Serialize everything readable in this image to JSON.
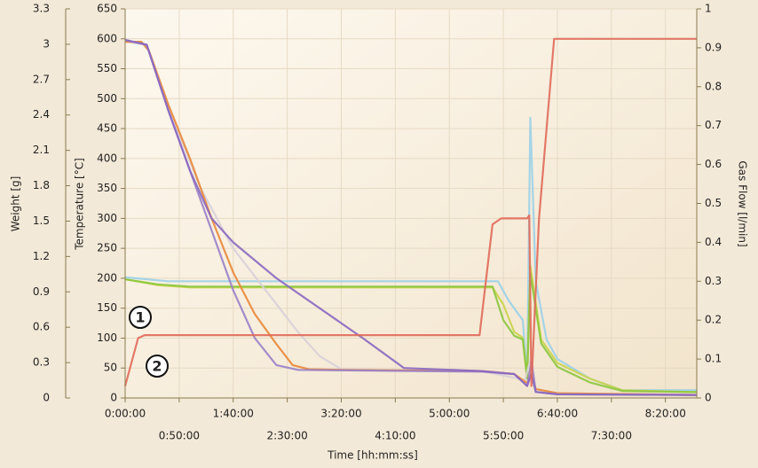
{
  "chart_data": {
    "type": "line",
    "xlabel": "Time [hh:mm:ss]",
    "ylabel": "Temperature [°C]",
    "y2label": "Gas Flow [l/min]",
    "y3label": "Weight [g]",
    "xlim": [
      0,
      529
    ],
    "xticks": [
      {
        "value": 0,
        "label": "0:00:00"
      },
      {
        "value": 50,
        "label": "0:50:00"
      },
      {
        "value": 100,
        "label": "1:40:00"
      },
      {
        "value": 150,
        "label": "2:30:00"
      },
      {
        "value": 200,
        "label": "3:20:00"
      },
      {
        "value": 250,
        "label": "4:10:00"
      },
      {
        "value": 300,
        "label": "5:00:00"
      },
      {
        "value": 350,
        "label": "5:50:00"
      },
      {
        "value": 400,
        "label": "6:40:00"
      },
      {
        "value": 450,
        "label": "7:30:00"
      },
      {
        "value": 500,
        "label": "8:20:00"
      }
    ],
    "ylim": [
      0,
      650
    ],
    "yticks": [
      0,
      50,
      100,
      150,
      200,
      250,
      300,
      350,
      400,
      450,
      500,
      550,
      600,
      650
    ],
    "y2lim": [
      0,
      1
    ],
    "y2ticks": [
      0,
      0.1,
      0.2,
      0.3,
      0.4,
      0.5,
      0.6,
      0.7,
      0.8,
      0.9,
      1
    ],
    "y3lim": [
      0,
      3.3
    ],
    "y3ticks": [
      0,
      0.3,
      0.6,
      0.9,
      1.2,
      1.5,
      1.8,
      2.1,
      2.4,
      2.7,
      3,
      3.3
    ],
    "grid": true,
    "annotations": [
      "1",
      "2"
    ],
    "series": [
      {
        "color": "#9bd0e8",
        "axis": "y2",
        "x": [
          0,
          40,
          100,
          200,
          345,
          355,
          368,
          372,
          375,
          380,
          390,
          400,
          430,
          460,
          529
        ],
        "values": [
          0.31,
          0.3,
          0.3,
          0.3,
          0.3,
          0.25,
          0.2,
          0.05,
          0.72,
          0.3,
          0.15,
          0.1,
          0.05,
          0.02,
          0.02
        ]
      },
      {
        "color": "#c8d44a",
        "axis": "y2",
        "x": [
          0,
          30,
          60,
          200,
          340,
          350,
          360,
          368,
          372,
          375,
          385,
          400,
          430,
          460,
          529
        ],
        "values": [
          0.305,
          0.29,
          0.284,
          0.284,
          0.284,
          0.24,
          0.17,
          0.155,
          0.05,
          0.34,
          0.15,
          0.09,
          0.05,
          0.02,
          0.015
        ]
      },
      {
        "color": "#8cc63f",
        "axis": "y2",
        "x": [
          0,
          30,
          60,
          200,
          340,
          350,
          360,
          368,
          372,
          375,
          385,
          400,
          430,
          460,
          529
        ],
        "values": [
          0.305,
          0.292,
          0.286,
          0.286,
          0.286,
          0.2,
          0.16,
          0.15,
          0.05,
          0.32,
          0.14,
          0.08,
          0.04,
          0.018,
          0.015
        ]
      },
      {
        "color": "#d8d0d8",
        "axis": "y",
        "x": [
          0,
          20,
          40,
          70,
          100,
          130,
          160,
          180,
          200,
          330,
          370,
          376,
          380,
          400,
          529
        ],
        "values": [
          595,
          590,
          485,
          350,
          250,
          180,
          110,
          70,
          48,
          45,
          30,
          70,
          15,
          8,
          5
        ]
      },
      {
        "color": "#e8883a",
        "axis": "y",
        "x": [
          0,
          15,
          22,
          40,
          60,
          80,
          100,
          120,
          140,
          155,
          170,
          200,
          330,
          360,
          372,
          376,
          380,
          400,
          529
        ],
        "values": [
          595,
          595,
          580,
          490,
          400,
          300,
          210,
          140,
          90,
          55,
          48,
          47,
          45,
          40,
          25,
          40,
          15,
          8,
          5
        ]
      },
      {
        "color": "#9a7fc8",
        "axis": "y",
        "x": [
          0,
          20,
          40,
          60,
          80,
          100,
          120,
          140,
          160,
          330,
          360,
          372,
          376,
          380,
          400,
          529
        ],
        "values": [
          598,
          590,
          480,
          380,
          280,
          180,
          100,
          55,
          47,
          44,
          40,
          20,
          60,
          10,
          6,
          5
        ]
      },
      {
        "color": "#8a68c0",
        "axis": "y",
        "x": [
          0,
          20,
          40,
          60,
          80,
          100,
          140,
          180,
          220,
          258,
          330,
          360,
          372,
          376,
          380,
          400,
          529
        ],
        "values": [
          598,
          590,
          480,
          380,
          300,
          260,
          200,
          150,
          100,
          50,
          45,
          40,
          20,
          40,
          10,
          6,
          5
        ]
      },
      {
        "color": "#e06a5a",
        "axis": "y",
        "x": [
          0,
          12,
          18,
          328,
          340,
          348,
          372,
          374,
          376,
          383,
          397,
          529
        ],
        "values": [
          20,
          100,
          105,
          105,
          290,
          300,
          300,
          305,
          20,
          300,
          600,
          600
        ]
      }
    ]
  }
}
